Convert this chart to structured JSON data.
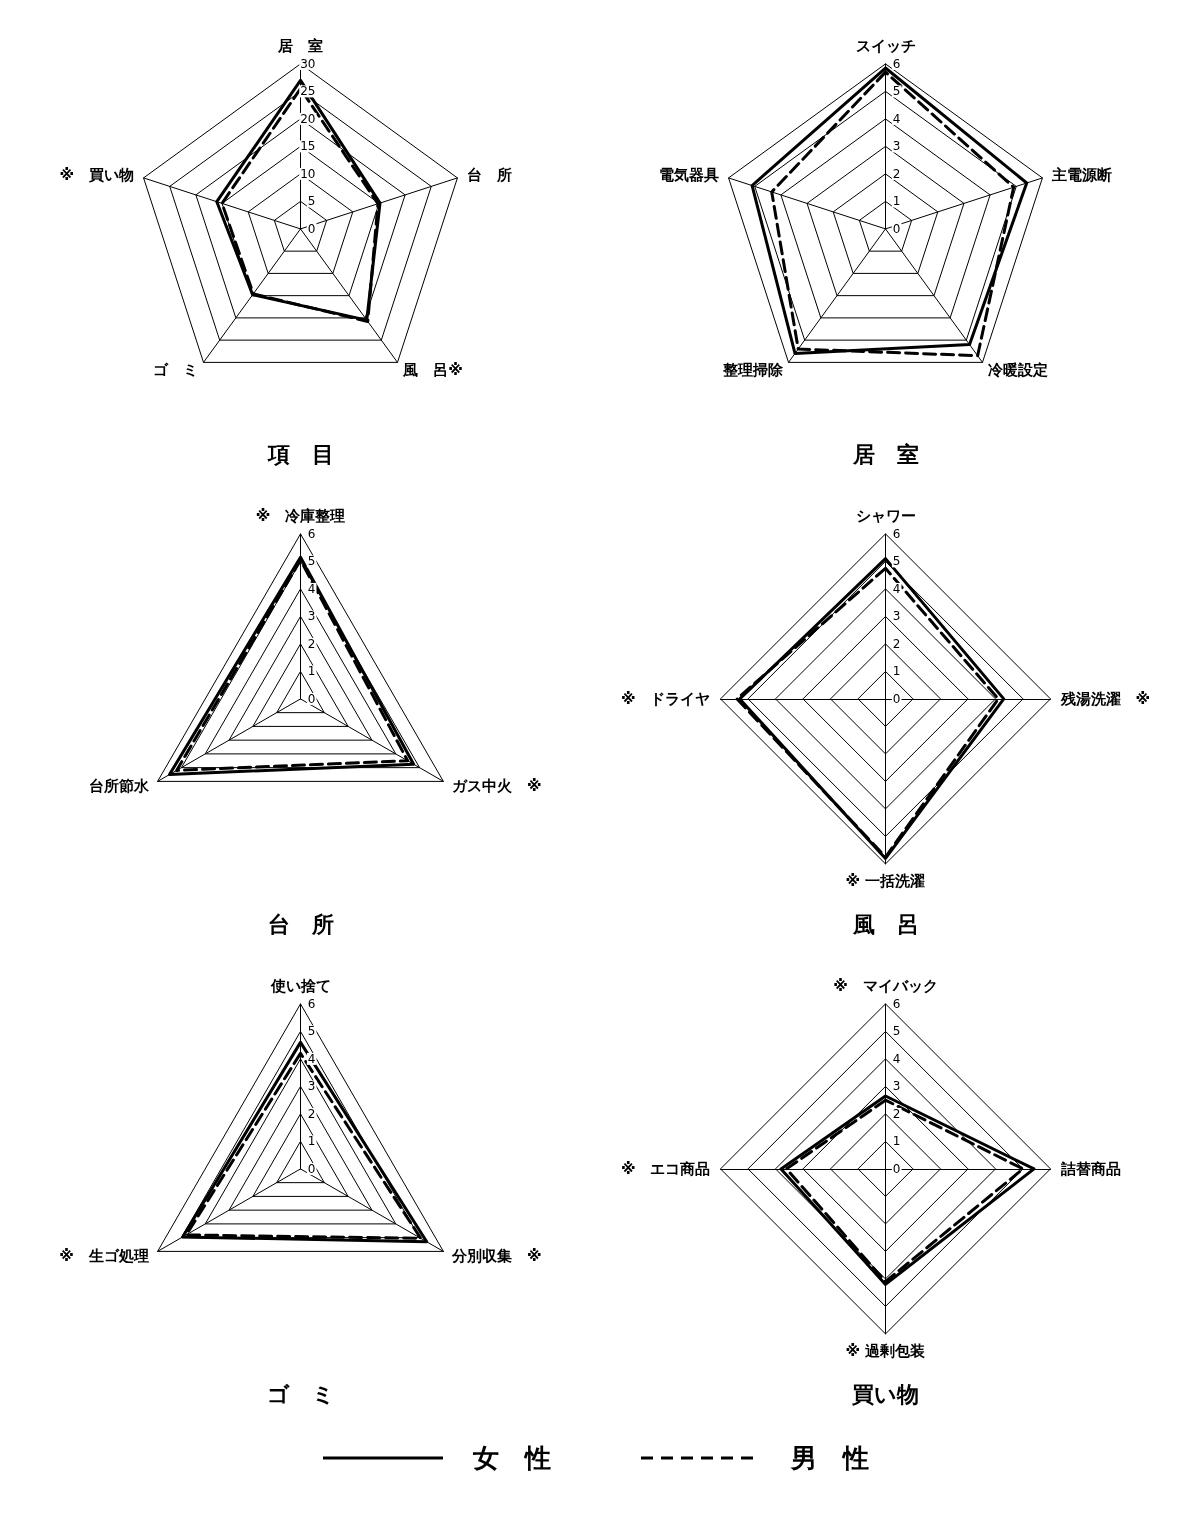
{
  "chart_data": [
    {
      "type": "radar",
      "title": "項　目",
      "categories": [
        "居　室",
        "台　所",
        "風　呂※",
        "ゴ　ミ",
        "※　買い物"
      ],
      "ylim": [
        0,
        30
      ],
      "yticks": [
        0,
        5,
        10,
        15,
        20,
        25,
        30
      ],
      "grid": true,
      "legend": "bottom",
      "series": [
        {
          "name": "女　性",
          "color": "#000000",
          "line_style": "solid",
          "values": [
            27,
            15.2,
            20.5,
            14.8,
            16
          ]
        },
        {
          "name": "男　性",
          "color": "#000000",
          "line_style": "dashed",
          "values": [
            25.5,
            14.8,
            20.8,
            14.6,
            15
          ]
        }
      ]
    },
    {
      "type": "radar",
      "title": "居　室",
      "categories": [
        "スイッチ",
        "主電源断",
        "冷暖設定",
        "整理掃除",
        "電気器具"
      ],
      "ylim": [
        0,
        6
      ],
      "yticks": [
        0,
        1,
        2,
        3,
        4,
        5,
        6
      ],
      "grid": true,
      "series": [
        {
          "color": "#000000",
          "line_style": "solid",
          "values": [
            5.85,
            5.4,
            5.2,
            5.6,
            5.1
          ]
        },
        {
          "color": "#000000",
          "line_style": "dashed",
          "values": [
            5.7,
            4.9,
            5.7,
            5.4,
            4.35
          ]
        }
      ]
    },
    {
      "type": "radar",
      "title": "台　所",
      "categories": [
        "※　冷庫整理",
        "ガス中火　※",
        "台所節水"
      ],
      "ylim": [
        0,
        6
      ],
      "yticks": [
        0,
        1,
        2,
        3,
        4,
        5,
        6
      ],
      "grid": true,
      "series": [
        {
          "color": "#000000",
          "line_style": "solid",
          "values": [
            5.15,
            4.75,
            5.5
          ]
        },
        {
          "color": "#000000",
          "line_style": "dashed",
          "values": [
            5.05,
            4.5,
            5.2
          ]
        }
      ]
    },
    {
      "type": "radar",
      "title": "風　呂",
      "categories": [
        "シャワー",
        "残湯洗濯　※",
        "※ 一括洗濯",
        "※　ドライヤ"
      ],
      "ylim": [
        0,
        6
      ],
      "yticks": [
        0,
        1,
        2,
        3,
        4,
        5,
        6
      ],
      "grid": true,
      "series": [
        {
          "color": "#000000",
          "line_style": "solid",
          "values": [
            5.1,
            4.3,
            5.8,
            5.3
          ]
        },
        {
          "color": "#000000",
          "line_style": "dashed",
          "values": [
            4.75,
            4.1,
            5.75,
            5.4
          ]
        }
      ]
    },
    {
      "type": "radar",
      "title": "ゴ　ミ",
      "categories": [
        "使い捨て",
        "分別収集　※",
        "※　生ゴ処理"
      ],
      "ylim": [
        0,
        6
      ],
      "yticks": [
        0,
        1,
        2,
        3,
        4,
        5,
        6
      ],
      "grid": true,
      "series": [
        {
          "color": "#000000",
          "line_style": "solid",
          "values": [
            4.6,
            5.3,
            4.95
          ]
        },
        {
          "color": "#000000",
          "line_style": "dashed",
          "values": [
            4.2,
            5.05,
            4.8
          ]
        }
      ]
    },
    {
      "type": "radar",
      "title": "買い物",
      "categories": [
        "※　マイバック",
        "詰替商品",
        "※ 過剰包装",
        "※　エコ商品"
      ],
      "ylim": [
        0,
        6
      ],
      "yticks": [
        0,
        1,
        2,
        3,
        4,
        5,
        6
      ],
      "grid": true,
      "series": [
        {
          "color": "#000000",
          "line_style": "solid",
          "values": [
            2.65,
            5.4,
            4.2,
            3.8
          ]
        },
        {
          "color": "#000000",
          "line_style": "dashed",
          "values": [
            2.5,
            5.0,
            4.1,
            3.6
          ]
        }
      ]
    }
  ]
}
